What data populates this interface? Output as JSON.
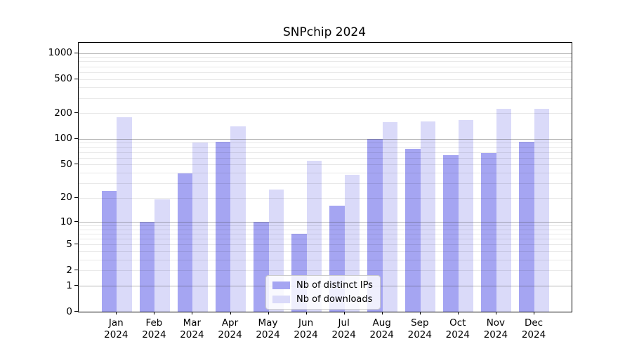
{
  "title": "SNPchip 2024",
  "chart_data": {
    "type": "bar",
    "yscale": "log1p",
    "grid": true,
    "legend_position": "bottom-center",
    "year": "2024",
    "categories": [
      "Jan",
      "Feb",
      "Mar",
      "Apr",
      "May",
      "Jun",
      "Jul",
      "Aug",
      "Sep",
      "Oct",
      "Nov",
      "Dec"
    ],
    "series": [
      {
        "name": "Nb of distinct IPs",
        "color": "#a5a5f2",
        "values": [
          24,
          10,
          39,
          92,
          10,
          7,
          16,
          99,
          76,
          65,
          68,
          92
        ]
      },
      {
        "name": "Nb of downloads",
        "color": "#dadaf9",
        "values": [
          180,
          19,
          90,
          140,
          25,
          55,
          38,
          157,
          160,
          165,
          225,
          225
        ]
      }
    ],
    "yticks": [
      0,
      1,
      2,
      5,
      10,
      20,
      50,
      100,
      200,
      500,
      1000
    ],
    "ylim": [
      0,
      1200
    ]
  }
}
